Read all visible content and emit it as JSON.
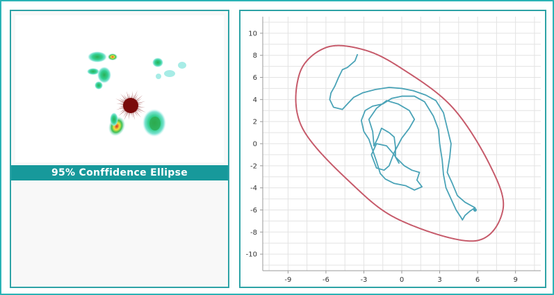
{
  "left_panel": {
    "caption": "95% Conffidence Ellipse",
    "colors": {
      "cool": "#2fd3a0",
      "mid": "#3bbf55",
      "warm": "#f3e23b",
      "hot": "#d82a2a",
      "center": "#7a0b0b",
      "glow": "#9fe8e6"
    },
    "blob_icons": [
      "green-blob",
      "red-burst"
    ]
  },
  "chart_data": {
    "type": "scatter",
    "title": "",
    "xlabel": "",
    "ylabel": "",
    "xlim": [
      -11,
      11
    ],
    "ylim": [
      -11.5,
      11.5
    ],
    "xticks": [
      -9,
      -6,
      -3,
      0,
      3,
      6,
      9
    ],
    "yticks": [
      -10,
      -8,
      -6,
      -4,
      -2,
      0,
      2,
      4,
      6,
      8,
      10
    ],
    "grid": true,
    "ellipse": {
      "center": [
        1.0,
        0.0
      ],
      "points": [
        [
          -6,
          8.7
        ],
        [
          -8.1,
          6.3
        ],
        [
          -7.9,
          1.5
        ],
        [
          -3.8,
          -3.8
        ],
        [
          0.0,
          -7.0
        ],
        [
          5.8,
          -8.8
        ],
        [
          8.0,
          -6.0
        ],
        [
          7.0,
          -2.0
        ],
        [
          4.0,
          3.3
        ],
        [
          0.0,
          6.8
        ],
        [
          -3.0,
          8.5
        ]
      ],
      "color": "#c65a6a"
    },
    "track": {
      "color": "#4aa3b7",
      "points": [
        [
          -3.5,
          8.1
        ],
        [
          -3.7,
          7.5
        ],
        [
          -4.3,
          6.9
        ],
        [
          -4.7,
          6.7
        ],
        [
          -5.0,
          6.0
        ],
        [
          -5.3,
          5.2
        ],
        [
          -5.6,
          4.6
        ],
        [
          -5.7,
          4.0
        ],
        [
          -5.4,
          3.3
        ],
        [
          -4.7,
          3.1
        ],
        [
          -4.3,
          3.6
        ],
        [
          -3.8,
          4.2
        ],
        [
          -3.1,
          4.6
        ],
        [
          -2.1,
          4.9
        ],
        [
          -1.0,
          5.1
        ],
        [
          0.0,
          5.0
        ],
        [
          0.9,
          4.8
        ],
        [
          1.9,
          4.4
        ],
        [
          2.7,
          3.9
        ],
        [
          3.3,
          2.8
        ],
        [
          3.6,
          1.4
        ],
        [
          3.9,
          0.0
        ],
        [
          3.8,
          -1.2
        ],
        [
          3.6,
          -2.6
        ],
        [
          4.0,
          -3.6
        ],
        [
          4.4,
          -4.7
        ],
        [
          5.0,
          -5.3
        ],
        [
          5.8,
          -5.8
        ],
        [
          5.4,
          -6.1
        ],
        [
          5.0,
          -6.5
        ],
        [
          4.8,
          -6.9
        ],
        [
          4.7,
          -6.7
        ],
        [
          4.3,
          -6.0
        ],
        [
          3.9,
          -5.0
        ],
        [
          3.5,
          -4.0
        ],
        [
          3.3,
          -2.8
        ],
        [
          3.2,
          -1.5
        ],
        [
          3.0,
          0.0
        ],
        [
          2.9,
          1.3
        ],
        [
          2.5,
          2.5
        ],
        [
          1.8,
          3.8
        ],
        [
          1.0,
          4.3
        ],
        [
          0.0,
          4.3
        ],
        [
          -0.8,
          4.1
        ],
        [
          -1.5,
          3.6
        ],
        [
          -2.3,
          3.4
        ],
        [
          -2.9,
          3.0
        ],
        [
          -3.2,
          2.1
        ],
        [
          -3.0,
          1.1
        ],
        [
          -2.6,
          0.4
        ],
        [
          -2.3,
          -0.6
        ],
        [
          -2.0,
          -1.6
        ],
        [
          -1.7,
          -2.7
        ],
        [
          -1.3,
          -3.2
        ],
        [
          -0.6,
          -3.6
        ],
        [
          0.3,
          -3.8
        ],
        [
          1.0,
          -4.2
        ],
        [
          1.6,
          -3.9
        ],
        [
          1.2,
          -3.3
        ],
        [
          1.4,
          -2.6
        ],
        [
          0.8,
          -2.4
        ],
        [
          0.2,
          -2.0
        ],
        [
          -0.5,
          -1.2
        ],
        [
          -0.5,
          -0.3
        ],
        [
          -0.6,
          0.6
        ],
        [
          -1.0,
          1.0
        ],
        [
          -1.6,
          1.4
        ],
        [
          -1.9,
          0.5
        ],
        [
          -2.2,
          -0.2
        ],
        [
          -2.3,
          1.1
        ],
        [
          -2.6,
          2.2
        ],
        [
          -2.0,
          3.2
        ],
        [
          -1.2,
          3.9
        ],
        [
          -0.3,
          3.6
        ],
        [
          0.6,
          3.0
        ],
        [
          1.0,
          2.2
        ],
        [
          0.6,
          1.4
        ],
        [
          0.0,
          0.5
        ],
        [
          -0.6,
          -0.8
        ],
        [
          -1.0,
          -2.0
        ],
        [
          -1.4,
          -2.4
        ],
        [
          -2.0,
          -2.2
        ],
        [
          -2.4,
          -1.0
        ],
        [
          -2.0,
          0.0
        ],
        [
          -1.2,
          -0.2
        ],
        [
          -0.6,
          -1.0
        ],
        [
          -0.2,
          -1.8
        ]
      ],
      "end_point": [
        5.8,
        -6.0
      ]
    }
  }
}
